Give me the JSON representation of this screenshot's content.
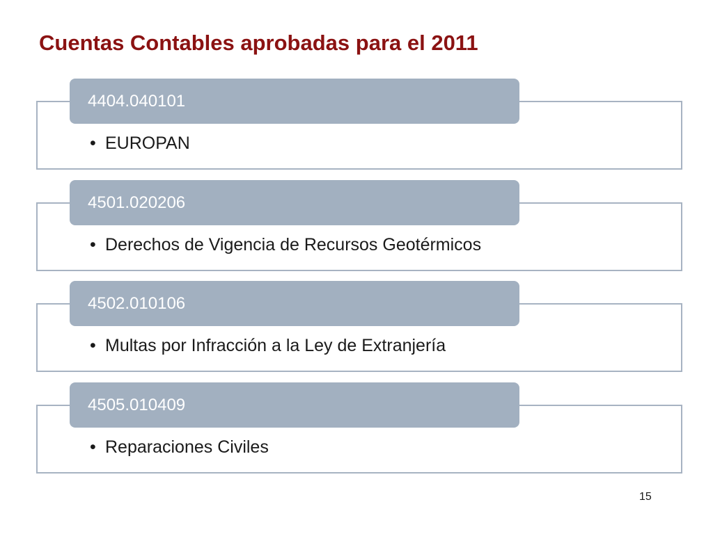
{
  "slide": {
    "title": "Cuentas Contables aprobadas para el 2011",
    "page_number": "15",
    "colors": {
      "title": "#8b1212",
      "tab_fill": "#a2b0c0",
      "frame_border": "#a7b3c2"
    }
  },
  "accounts": [
    {
      "code": "4404.040101",
      "bullet": "•",
      "description": "EUROPAN"
    },
    {
      "code": "4501.020206",
      "bullet": "•",
      "description": "Derechos de Vigencia de Recursos Geotérmicos"
    },
    {
      "code": "4502.010106",
      "bullet": "•",
      "description": "Multas por Infracción a la Ley de Extranjería"
    },
    {
      "code": "4505.010409",
      "bullet": "•",
      "description": "Reparaciones Civiles"
    }
  ]
}
